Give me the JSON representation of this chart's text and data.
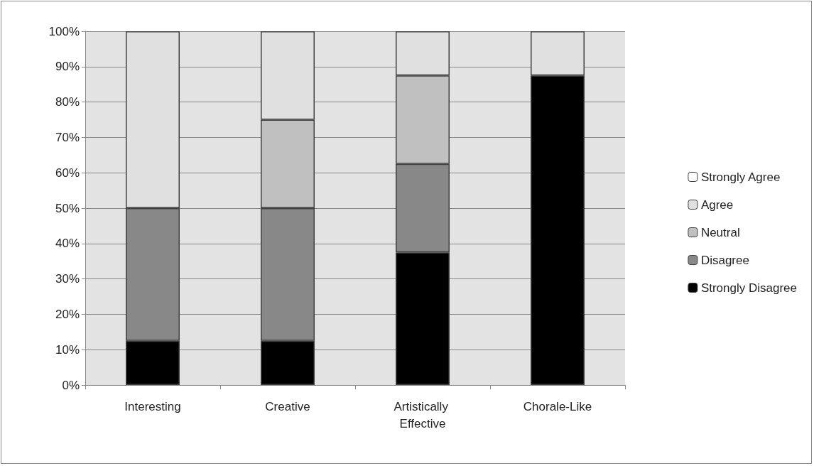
{
  "chart_data": {
    "type": "bar",
    "stacked": true,
    "categories": [
      "Interesting",
      "Creative",
      "Artistically Effective",
      "Chorale-Like"
    ],
    "series": [
      {
        "name": "Strongly Disagree",
        "color": "#000000",
        "values": [
          12.5,
          12.5,
          37.5,
          87.5
        ]
      },
      {
        "name": "Disagree",
        "color": "#888888",
        "values": [
          37.5,
          37.5,
          25,
          0
        ]
      },
      {
        "name": "Neutral",
        "color": "#c0c0c0",
        "values": [
          0,
          25,
          25,
          0
        ]
      },
      {
        "name": "Agree",
        "color": "#e0e0e0",
        "values": [
          50,
          25,
          12.5,
          12.5
        ]
      },
      {
        "name": "Strongly Agree",
        "color": "#ffffff",
        "values": [
          0,
          0,
          0,
          0
        ]
      }
    ],
    "ylim": [
      0,
      100
    ],
    "yticks": [
      {
        "value": 0,
        "label": "0%"
      },
      {
        "value": 10,
        "label": "10%"
      },
      {
        "value": 20,
        "label": "20%"
      },
      {
        "value": 30,
        "label": "30%"
      },
      {
        "value": 40,
        "label": "40%"
      },
      {
        "value": 50,
        "label": "50%"
      },
      {
        "value": 60,
        "label": "60%"
      },
      {
        "value": 70,
        "label": "70%"
      },
      {
        "value": 80,
        "label": "80%"
      },
      {
        "value": 90,
        "label": "90%"
      },
      {
        "value": 100,
        "label": "100%"
      }
    ],
    "grid": "y",
    "legend": "right"
  }
}
